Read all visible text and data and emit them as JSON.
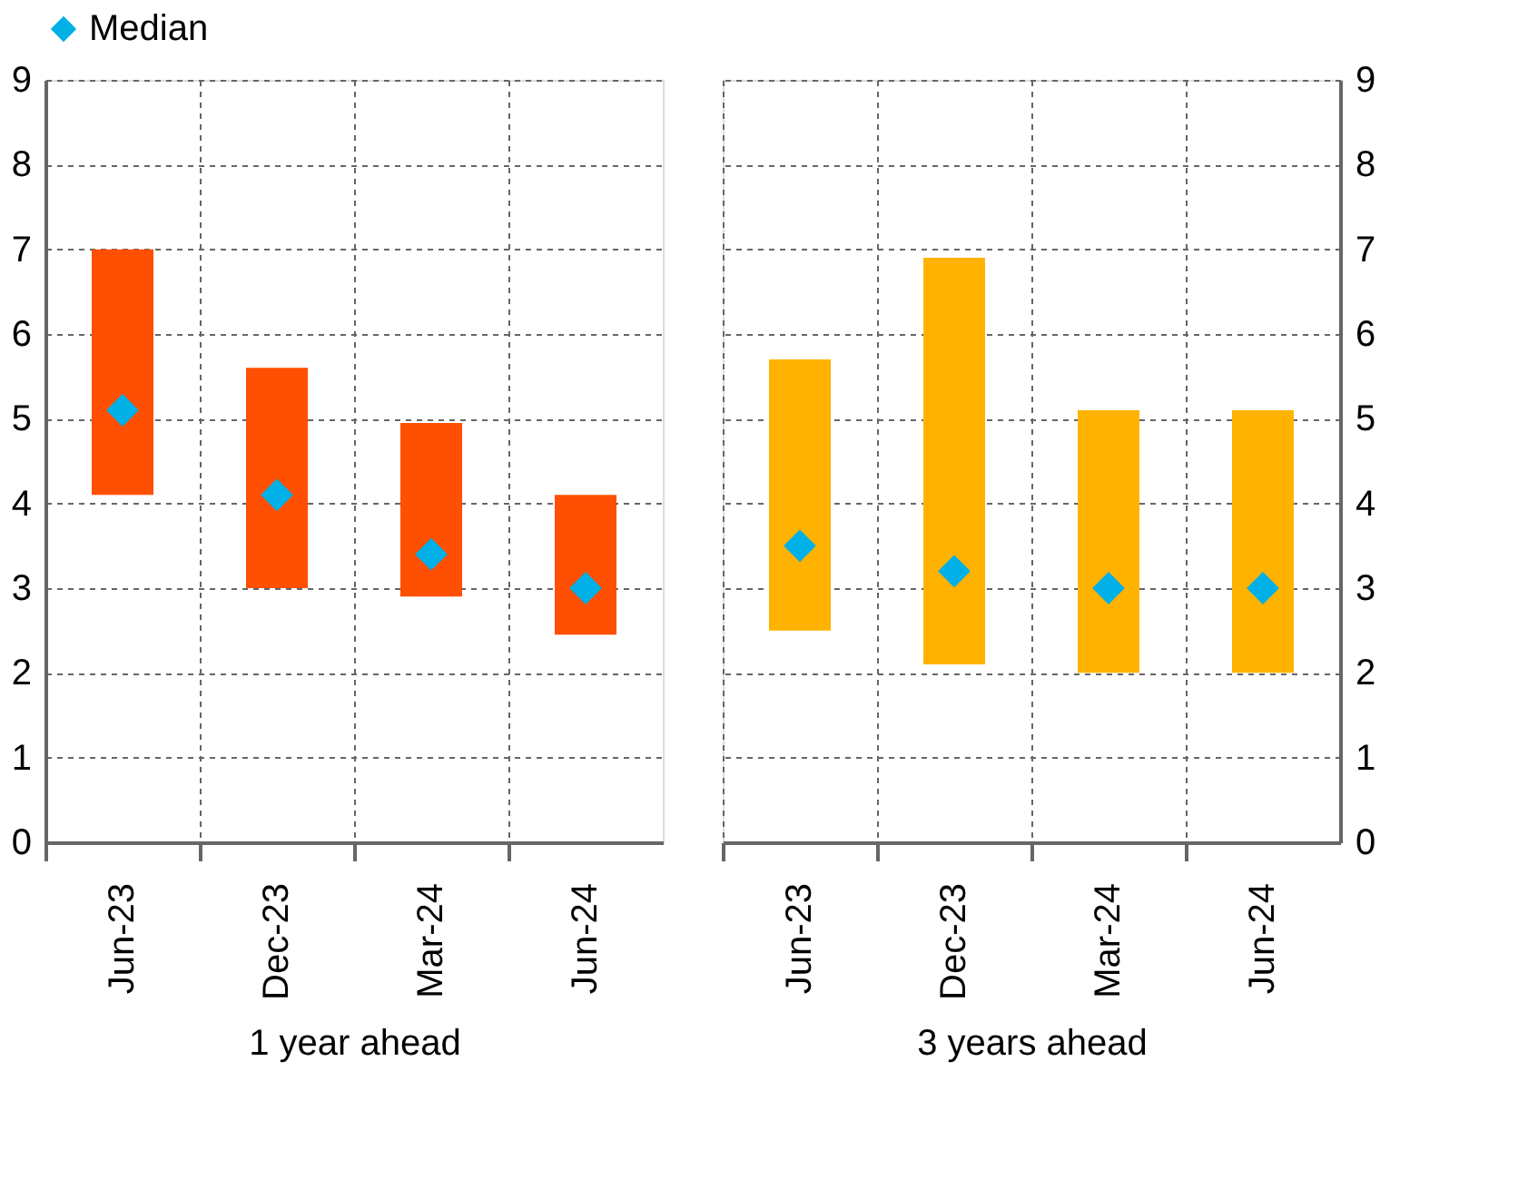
{
  "chart_data": [
    {
      "type": "bar",
      "xlabel": "1 year ahead",
      "categories": [
        "Jun-23",
        "Dec-23",
        "Mar-24",
        "Jun-24"
      ],
      "ylim": [
        0,
        9
      ],
      "yticks": [
        0,
        1,
        2,
        3,
        4,
        5,
        6,
        7,
        8,
        9
      ],
      "grid": true,
      "legend": "top",
      "series": [
        {
          "type": "bar",
          "color": "#ff4f00",
          "base": [
            4.1,
            3.0,
            2.9,
            2.45
          ],
          "values": [
            2.9,
            2.6,
            2.05,
            1.65
          ]
        },
        {
          "type": "scatter",
          "name": "Median",
          "color": "#00b0e6",
          "marker": "diamond",
          "values": [
            5.1,
            4.1,
            3.4,
            3.0
          ]
        }
      ]
    },
    {
      "type": "bar",
      "xlabel": "3 years ahead",
      "categories": [
        "Jun-23",
        "Dec-23",
        "Mar-24",
        "Jun-24"
      ],
      "y2lim": [
        0,
        9
      ],
      "y2ticks": [
        0,
        1,
        2,
        3,
        4,
        5,
        6,
        7,
        8,
        9
      ],
      "grid": true,
      "series": [
        {
          "type": "bar",
          "axis": "y2",
          "color": "#ffb300",
          "base": [
            2.5,
            2.1,
            2.0,
            2.0
          ],
          "values": [
            3.2,
            4.8,
            3.1,
            3.1
          ]
        },
        {
          "type": "scatter",
          "axis": "y2",
          "color": "#00b0e6",
          "marker": "diamond",
          "values": [
            3.5,
            3.2,
            3.0,
            3.0
          ]
        }
      ]
    }
  ]
}
